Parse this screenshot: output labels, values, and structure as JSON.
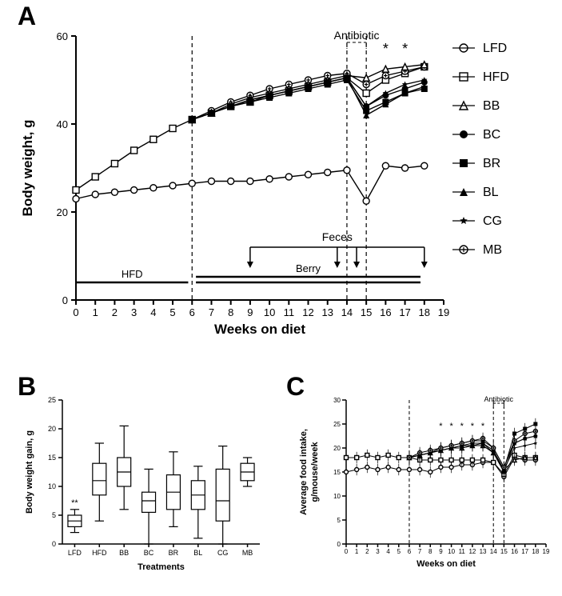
{
  "panel_labels": {
    "A": "A",
    "B": "B",
    "C": "C"
  },
  "panelA": {
    "title_x": "Weeks on diet",
    "title_y": "Body weight, g",
    "x_ticks": [
      0,
      1,
      2,
      3,
      4,
      5,
      6,
      7,
      8,
      9,
      10,
      11,
      12,
      13,
      14,
      15,
      16,
      17,
      18,
      19
    ],
    "y_ticks": [
      0,
      20,
      40,
      60
    ],
    "antibiotic_label": "Antibiotic",
    "feces_label": "Feces",
    "berry_label": "Berry",
    "hfd_bar_label": "HFD",
    "stars": [
      "*",
      "*"
    ],
    "legend": [
      "LFD",
      "HFD",
      "BB",
      "BC",
      "BR",
      "BL",
      "CG",
      "MB"
    ],
    "legend_markers": [
      "open-circle",
      "open-square",
      "open-triangle",
      "circle",
      "square",
      "triangle",
      "star",
      "circle-plus"
    ],
    "line_color": "#000000",
    "background": "#ffffff",
    "axis_font": 17,
    "tick_font": 13,
    "series": {
      "LFD": {
        "x": [
          0,
          1,
          2,
          3,
          4,
          5,
          6,
          7,
          8,
          9,
          10,
          11,
          12,
          13,
          14,
          15,
          16,
          17,
          18
        ],
        "y": [
          23,
          24,
          24.5,
          25,
          25.5,
          26,
          26.5,
          27,
          27,
          27,
          27.5,
          28,
          28.5,
          29,
          29.5,
          22.5,
          30.5,
          30,
          30.5
        ],
        "marker": "open-circle"
      },
      "HFD": {
        "x": [
          0,
          1,
          2,
          3,
          4,
          5,
          6,
          7,
          8,
          9,
          10,
          11,
          12,
          13,
          14,
          15,
          16,
          17,
          18
        ],
        "y": [
          25,
          28,
          31,
          34,
          36.5,
          39,
          41,
          42.5,
          44,
          45,
          46.5,
          47.5,
          48.5,
          49.5,
          50.5,
          47,
          50,
          51.5,
          53
        ],
        "marker": "open-square"
      },
      "BB": {
        "x": [
          6,
          7,
          8,
          9,
          10,
          11,
          12,
          13,
          14,
          15,
          16,
          17,
          18
        ],
        "y": [
          41,
          42.5,
          44.5,
          46,
          47,
          48,
          49,
          50,
          51,
          50.5,
          52.5,
          53,
          53.5
        ],
        "marker": "open-triangle"
      },
      "BC": {
        "x": [
          6,
          7,
          8,
          9,
          10,
          11,
          12,
          13,
          14,
          15,
          16,
          17,
          18
        ],
        "y": [
          41,
          42.5,
          44,
          45.5,
          46.5,
          47.5,
          48.5,
          49.5,
          50.5,
          44,
          46.5,
          48,
          49.5
        ],
        "marker": "circle"
      },
      "BR": {
        "x": [
          6,
          7,
          8,
          9,
          10,
          11,
          12,
          13,
          14,
          15,
          16,
          17,
          18
        ],
        "y": [
          41,
          42.5,
          44,
          45,
          46,
          47,
          48,
          49,
          50,
          43,
          45,
          47,
          48
        ],
        "marker": "square"
      },
      "BL": {
        "x": [
          6,
          7,
          8,
          9,
          10,
          11,
          12,
          13,
          14,
          15,
          16,
          17,
          18
        ],
        "y": [
          41,
          42.5,
          44,
          45.5,
          46.5,
          47.5,
          48.5,
          49.5,
          50.5,
          42,
          44.5,
          47,
          48.5
        ],
        "marker": "triangle"
      },
      "CG": {
        "x": [
          6,
          7,
          8,
          9,
          10,
          11,
          12,
          13,
          14,
          15,
          16,
          17,
          18
        ],
        "y": [
          41,
          42.5,
          44,
          45.5,
          46.5,
          47.5,
          48.5,
          49.5,
          50.5,
          44,
          47,
          49,
          50
        ],
        "marker": "star"
      },
      "MB": {
        "x": [
          6,
          7,
          8,
          9,
          10,
          11,
          12,
          13,
          14,
          15,
          16,
          17,
          18
        ],
        "y": [
          41,
          43,
          45,
          46.5,
          48,
          49,
          50,
          51,
          51.5,
          49,
          51,
          52,
          53
        ],
        "marker": "circle-plus"
      }
    },
    "feces_marks": [
      9,
      13.5,
      14.5,
      18
    ],
    "dashed_x": [
      6,
      14,
      15
    ],
    "antibiotic_span": [
      14,
      15
    ],
    "hfd_bar_x": [
      0,
      5.8
    ],
    "berry_bar_x": [
      6.2,
      17.8
    ]
  },
  "panelB": {
    "title_x": "Treatments",
    "title_y": "Body weight gain, g",
    "x_labels": [
      "LFD",
      "HFD",
      "BB",
      "BC",
      "BR",
      "BL",
      "CG",
      "MB"
    ],
    "y_ticks": [
      0,
      5,
      10,
      15,
      20,
      25
    ],
    "sig": "**",
    "axis_font": 11,
    "tick_font": 9,
    "line_color": "#000000",
    "boxes": [
      {
        "min": 2,
        "q1": 3,
        "med": 4,
        "q3": 5,
        "max": 6
      },
      {
        "min": 4,
        "q1": 8.5,
        "med": 11,
        "q3": 14,
        "max": 17.5
      },
      {
        "min": 6,
        "q1": 10,
        "med": 12.5,
        "q3": 15,
        "max": 20.5
      },
      {
        "min": 0,
        "q1": 5.5,
        "med": 7.5,
        "q3": 9,
        "max": 13
      },
      {
        "min": 3,
        "q1": 6,
        "med": 9,
        "q3": 12,
        "max": 16
      },
      {
        "min": 1,
        "q1": 6,
        "med": 8.5,
        "q3": 11,
        "max": 13.5
      },
      {
        "min": 0,
        "q1": 4,
        "med": 7.5,
        "q3": 13,
        "max": 17
      },
      {
        "min": 10,
        "q1": 11,
        "med": 12.5,
        "q3": 14,
        "max": 15
      }
    ]
  },
  "panelC": {
    "title_x": "Weeks on diet",
    "title_y_1": "Average food intake,",
    "title_y_2": "g/mouse/week",
    "x_ticks": [
      0,
      1,
      2,
      3,
      4,
      5,
      6,
      7,
      8,
      9,
      10,
      11,
      12,
      13,
      14,
      15,
      16,
      17,
      18,
      19
    ],
    "y_ticks": [
      0,
      5,
      10,
      15,
      20,
      25,
      30
    ],
    "antibiotic_label": "Antibiotic",
    "stars_x": [
      9,
      10,
      11,
      12,
      13
    ],
    "axis_font": 11,
    "tick_font": 8,
    "line_color": "#000000",
    "dashed_x": [
      6,
      14,
      15
    ],
    "series_y": {
      "open-circle": [
        15,
        15.5,
        16,
        15.5,
        16,
        15.5,
        15.5,
        15.5,
        15,
        16,
        16,
        16.5,
        16.5,
        17,
        17,
        14,
        18,
        17.5,
        17.5
      ],
      "open-square": [
        18,
        18,
        18.5,
        18,
        18.5,
        18,
        18,
        17.5,
        17.5,
        17.5,
        17.5,
        17.5,
        17.5,
        17.5,
        17,
        14.5,
        18.5,
        18,
        18
      ],
      "open-triangle": [
        null,
        null,
        null,
        null,
        null,
        null,
        18,
        18.5,
        19,
        19.5,
        20,
        20,
        20.5,
        20.5,
        19,
        15.5,
        17.5,
        18,
        18
      ],
      "circle": [
        null,
        null,
        null,
        null,
        null,
        null,
        18,
        18.5,
        19,
        20,
        20.5,
        21,
        21.5,
        21.5,
        20,
        16,
        21,
        22,
        22.5
      ],
      "square": [
        null,
        null,
        null,
        null,
        null,
        null,
        18,
        18.5,
        19,
        19.5,
        20,
        20.5,
        21,
        21,
        19.5,
        15.5,
        23,
        24,
        25
      ],
      "triangle": [
        null,
        null,
        null,
        null,
        null,
        null,
        18,
        18.5,
        19,
        19.5,
        20,
        20.5,
        20.5,
        21,
        19,
        15,
        21,
        22,
        22.5
      ],
      "star": [
        null,
        null,
        null,
        null,
        null,
        null,
        18,
        18.5,
        19,
        19.5,
        20,
        20,
        20.5,
        20.5,
        19,
        15.5,
        20,
        20.5,
        21
      ],
      "circle-plus": [
        null,
        null,
        null,
        null,
        null,
        null,
        18,
        19,
        19.5,
        20,
        20.5,
        21,
        21.5,
        22,
        20,
        16,
        21.5,
        23,
        23.5
      ]
    },
    "err": 1.2
  }
}
